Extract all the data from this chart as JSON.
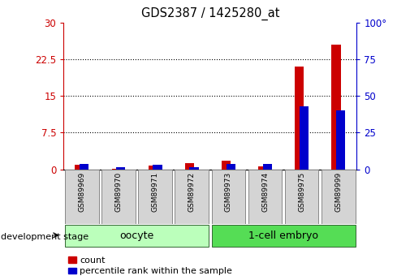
{
  "title": "GDS2387 / 1425280_at",
  "samples": [
    "GSM89969",
    "GSM89970",
    "GSM89971",
    "GSM89972",
    "GSM89973",
    "GSM89974",
    "GSM89975",
    "GSM89999"
  ],
  "count_values": [
    1.0,
    0.2,
    0.7,
    1.2,
    1.8,
    0.6,
    21.0,
    25.5
  ],
  "percentile_values": [
    3.5,
    1.5,
    3.0,
    1.5,
    3.5,
    3.5,
    43.0,
    40.0
  ],
  "groups": [
    {
      "label": "oocyte",
      "start": 0,
      "end": 4,
      "color": "#bbffbb"
    },
    {
      "label": "1-cell embryo",
      "start": 4,
      "end": 8,
      "color": "#55dd55"
    }
  ],
  "left_ylim": [
    0,
    30
  ],
  "right_ylim": [
    0,
    100
  ],
  "left_yticks": [
    0,
    7.5,
    15,
    22.5,
    30
  ],
  "right_yticks": [
    0,
    25,
    50,
    75,
    100
  ],
  "left_tick_labels": [
    "0",
    "7.5",
    "15",
    "22.5",
    "30"
  ],
  "right_tick_labels": [
    "0",
    "25",
    "50",
    "75",
    "100°"
  ],
  "count_color": "#cc0000",
  "percentile_color": "#0000cc",
  "bar_width": 0.25,
  "development_label": "development stage",
  "legend_count_label": "count",
  "legend_percentile_label": "percentile rank within the sample",
  "grid_yticks": [
    7.5,
    15,
    22.5
  ],
  "bg_color": "#ffffff"
}
